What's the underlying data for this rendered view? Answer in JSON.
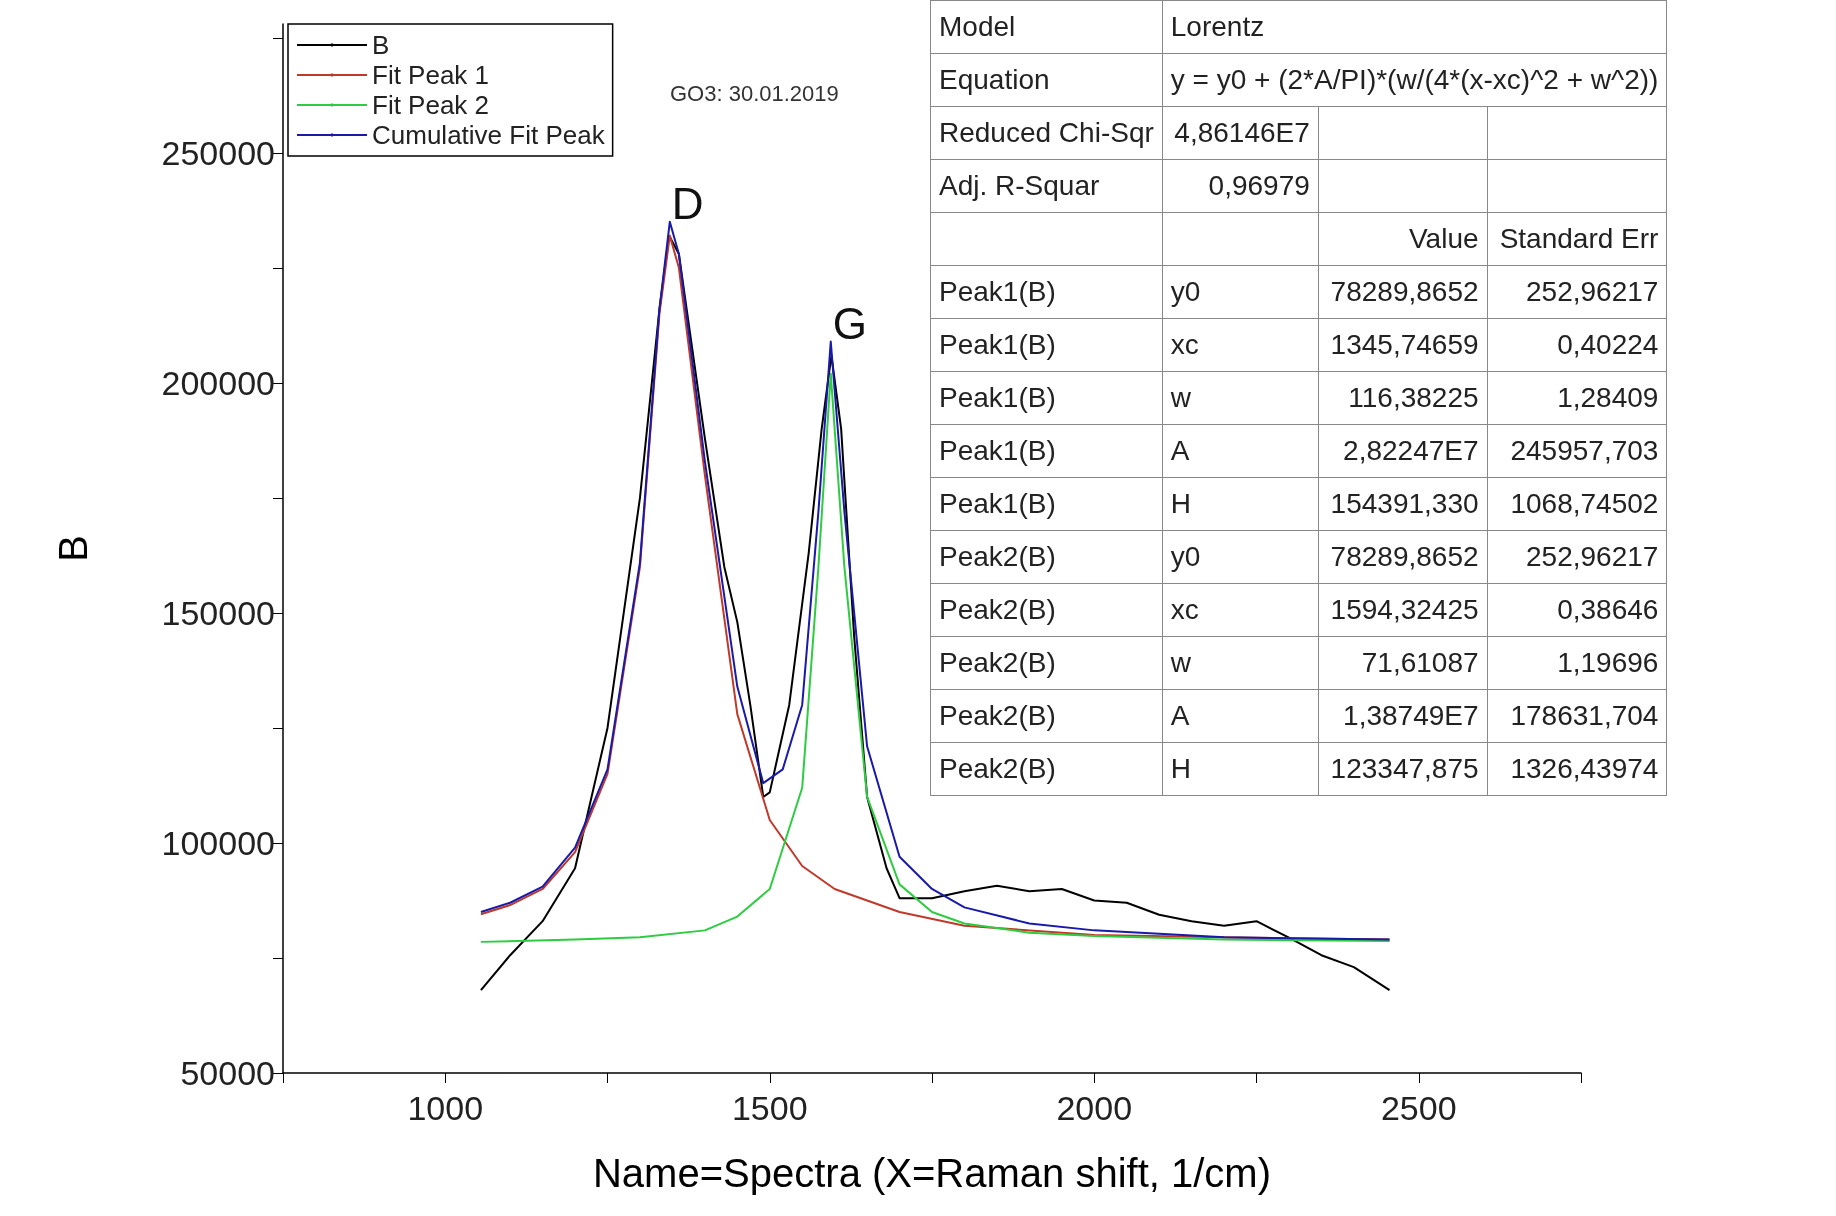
{
  "chart_data": [
    {
      "type": "line",
      "xlabel": "Name=Spectra (X=Raman shift, 1/cm)",
      "ylabel": "B",
      "xlim": [
        750,
        2750
      ],
      "ylim": [
        50000,
        278000
      ],
      "xticks": [
        {
          "value": 750,
          "label": null
        },
        1000,
        {
          "value": 1250,
          "label": null
        },
        1500,
        {
          "value": 1750,
          "label": null
        },
        2000,
        {
          "value": 2250,
          "label": null
        },
        2500,
        {
          "value": 2750,
          "label": null
        }
      ],
      "yticks": [
        50000,
        {
          "value": 75000,
          "label": null
        },
        100000,
        {
          "value": 125000,
          "label": null
        },
        150000,
        {
          "value": 175000,
          "label": null
        },
        200000,
        {
          "value": 225000,
          "label": null
        },
        250000,
        {
          "value": 275000,
          "label": null
        }
      ],
      "grid": false,
      "legend": "top left",
      "marker": "none",
      "line_style": "solid",
      "annotations": [
        "GO3: 30.01.2019",
        {
          "text": "D",
          "x": 1346,
          "y": 235000
        },
        {
          "text": "G",
          "x": 1594,
          "y": 209000
        }
      ],
      "series": [
        {
          "name": "B",
          "color": "#000000",
          "x": [
            1055,
            1100,
            1150,
            1200,
            1250,
            1300,
            1330,
            1345,
            1360,
            1400,
            1430,
            1450,
            1470,
            1490,
            1500,
            1530,
            1560,
            1580,
            1595,
            1610,
            1630,
            1650,
            1680,
            1700,
            1750,
            1800,
            1850,
            1900,
            1950,
            2000,
            2050,
            2100,
            2150,
            2200,
            2250,
            2300,
            2350,
            2400,
            2455
          ],
          "values": [
            68000,
            75600,
            83000,
            94500,
            125000,
            175000,
            216000,
            232000,
            228000,
            188000,
            160000,
            148000,
            130000,
            110000,
            111000,
            130000,
            163000,
            190000,
            206000,
            190000,
            145000,
            110000,
            94500,
            88000,
            88000,
            89500,
            90700,
            89500,
            90000,
            87500,
            87000,
            84400,
            83000,
            82000,
            83000,
            79400,
            75600,
            73000,
            68000
          ]
        },
        {
          "name": "Fit Peak 1",
          "color": "#c0392b",
          "x": [
            1055,
            1100,
            1150,
            1200,
            1250,
            1300,
            1330,
            1346,
            1360,
            1400,
            1450,
            1500,
            1550,
            1600,
            1700,
            1800,
            2000,
            2200,
            2455
          ],
          "values": [
            84500,
            86500,
            90000,
            98000,
            115000,
            160000,
            215000,
            232000,
            225000,
            180000,
            128000,
            105000,
            95000,
            90000,
            85000,
            82000,
            80000,
            79500,
            79000
          ]
        },
        {
          "name": "Fit Peak 2",
          "color": "#2ecc40",
          "x": [
            1055,
            1200,
            1300,
            1400,
            1450,
            1500,
            1550,
            1575,
            1594,
            1615,
            1650,
            1700,
            1750,
            1800,
            1900,
            2000,
            2200,
            2455
          ],
          "values": [
            78500,
            79000,
            79500,
            81000,
            84000,
            90000,
            112000,
            160000,
            202000,
            160000,
            110000,
            91000,
            85000,
            82500,
            80500,
            79800,
            79000,
            78700
          ]
        },
        {
          "name": "Cumulative Fit Peak",
          "color": "#1a1aa8",
          "x": [
            1055,
            1100,
            1150,
            1200,
            1250,
            1300,
            1330,
            1346,
            1360,
            1400,
            1450,
            1490,
            1520,
            1550,
            1575,
            1594,
            1615,
            1650,
            1700,
            1750,
            1800,
            1900,
            2000,
            2200,
            2455
          ],
          "values": [
            85000,
            87000,
            90500,
            99000,
            116000,
            161000,
            216000,
            235000,
            228000,
            183000,
            134000,
            113000,
            116000,
            130000,
            172000,
            209000,
            172000,
            121000,
            97000,
            90000,
            86000,
            82500,
            81000,
            79500,
            79000
          ]
        }
      ]
    },
    {
      "type": "other",
      "cell_labels": [
        [
          "Model",
          "Lorentz"
        ],
        [
          "Equation",
          "y = y0 + (2*A/PI)*(w/(4*(x-xc)^2 + w^2))"
        ],
        [
          "Reduced Chi-Sqr",
          "4,86146E7",
          null,
          null
        ],
        [
          "Adj. R-Squar",
          "0,96979",
          null,
          null
        ],
        [
          null,
          null,
          "Value",
          "Standard Err"
        ],
        [
          "Peak1(B)",
          "y0",
          "78289,8652",
          "252,96217"
        ],
        [
          "Peak1(B)",
          "xc",
          "1345,74659",
          "0,40224"
        ],
        [
          "Peak1(B)",
          "w",
          "116,38225",
          "1,28409"
        ],
        [
          "Peak1(B)",
          "A",
          "2,82247E7",
          "245957,703"
        ],
        [
          "Peak1(B)",
          "H",
          "154391,330",
          "1068,74502"
        ],
        [
          "Peak2(B)",
          "y0",
          "78289,8652",
          "252,96217"
        ],
        [
          "Peak2(B)",
          "xc",
          "1594,32425",
          "0,38646"
        ],
        [
          "Peak2(B)",
          "w",
          "71,61087",
          "1,19696"
        ],
        [
          "Peak2(B)",
          "A",
          "1,38749E7",
          "178631,704"
        ],
        [
          "Peak2(B)",
          "H",
          "123347,875",
          "1326,43974"
        ]
      ]
    }
  ]
}
